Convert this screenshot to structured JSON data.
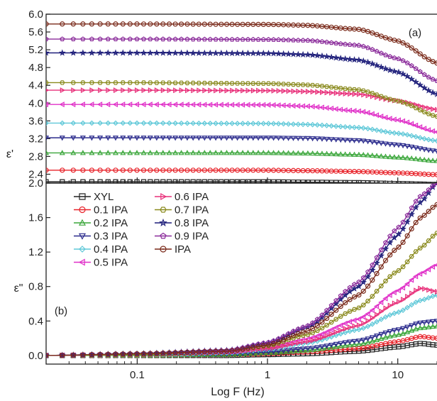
{
  "chart_data": [
    {
      "panel": "(a)",
      "type": "line",
      "ylabel": "ε'",
      "xlabel": "",
      "xscale": "log",
      "xlim": [
        0.02,
        20
      ],
      "ylim": [
        2.2,
        6.0
      ],
      "yticks": [
        "2.4",
        "2.8",
        "3.2",
        "3.6",
        "4.0",
        "4.4",
        "4.8",
        "5.2",
        "5.6",
        "6.0"
      ],
      "grid": false,
      "series": [
        {
          "name": "XYL",
          "color": "#222222",
          "marker": "square",
          "x": [
            0.02,
            0.1,
            1,
            2,
            5,
            10,
            20
          ],
          "values": [
            2.23,
            2.23,
            2.23,
            2.22,
            2.21,
            2.19,
            2.17
          ]
        },
        {
          "name": "0.1 IPA",
          "color": "#e8232a",
          "marker": "circle",
          "x": [
            0.02,
            0.1,
            1,
            2,
            5,
            10,
            20
          ],
          "values": [
            2.49,
            2.49,
            2.49,
            2.48,
            2.46,
            2.43,
            2.39
          ]
        },
        {
          "name": "0.2 IPA",
          "color": "#3aa63a",
          "marker": "triangle-up",
          "x": [
            0.02,
            0.1,
            1,
            2,
            5,
            10,
            20
          ],
          "values": [
            2.88,
            2.88,
            2.88,
            2.87,
            2.84,
            2.78,
            2.7
          ]
        },
        {
          "name": "0.3 IPA",
          "color": "#2a2a8c",
          "marker": "triangle-down",
          "x": [
            0.02,
            0.1,
            1,
            2,
            5,
            10,
            20
          ],
          "values": [
            3.22,
            3.22,
            3.22,
            3.21,
            3.16,
            3.06,
            2.92
          ]
        },
        {
          "name": "0.4 IPA",
          "color": "#5fc8d8",
          "marker": "diamond",
          "x": [
            0.02,
            0.1,
            1,
            2,
            5,
            10,
            20
          ],
          "values": [
            3.55,
            3.55,
            3.54,
            3.52,
            3.45,
            3.32,
            3.15
          ]
        },
        {
          "name": "0.5 IPA",
          "color": "#e030c8",
          "marker": "triangle-left",
          "x": [
            0.02,
            0.1,
            1,
            2,
            5,
            10,
            20
          ],
          "values": [
            3.97,
            3.97,
            3.96,
            3.93,
            3.82,
            3.62,
            3.35
          ]
        },
        {
          "name": "0.6 IPA",
          "color": "#e8307a",
          "marker": "triangle-right",
          "x": [
            0.02,
            0.1,
            1,
            2,
            5,
            10,
            20
          ],
          "values": [
            4.29,
            4.29,
            4.28,
            4.26,
            4.2,
            4.05,
            3.85
          ]
        },
        {
          "name": "0.7 IPA",
          "color": "#8a8a1e",
          "marker": "hexagon",
          "x": [
            0.02,
            0.1,
            1,
            2,
            5,
            10,
            20
          ],
          "values": [
            4.46,
            4.46,
            4.44,
            4.41,
            4.3,
            4.05,
            3.7
          ]
        },
        {
          "name": "0.8 IPA",
          "color": "#1e1e7a",
          "marker": "star",
          "x": [
            0.02,
            0.1,
            1,
            2,
            5,
            10,
            20
          ],
          "values": [
            5.13,
            5.13,
            5.12,
            5.09,
            4.97,
            4.7,
            4.2
          ]
        },
        {
          "name": "0.9 IPA",
          "color": "#8a2a9a",
          "marker": "pentagon",
          "x": [
            0.02,
            0.1,
            1,
            2,
            5,
            10,
            20
          ],
          "values": [
            5.44,
            5.44,
            5.43,
            5.41,
            5.3,
            5.0,
            4.5
          ]
        },
        {
          "name": "IPA",
          "color": "#7a2a1a",
          "marker": "circle-dot",
          "x": [
            0.02,
            0.1,
            1,
            2,
            5,
            10,
            20
          ],
          "values": [
            5.78,
            5.78,
            5.77,
            5.75,
            5.66,
            5.4,
            4.9
          ]
        }
      ]
    },
    {
      "panel": "(b)",
      "type": "line",
      "ylabel": "ε\"",
      "xlabel": "Log F (Hz)",
      "xscale": "log",
      "xlim": [
        0.02,
        20
      ],
      "ylim": [
        -0.1,
        2.0
      ],
      "xticks": [
        "0.1",
        "1",
        "10"
      ],
      "yticks": [
        "0.0",
        "0.4",
        "0.8",
        "1.2",
        "1.6",
        "2.0"
      ],
      "grid": false,
      "legend_position": "top-left",
      "series": [
        {
          "name": "XYL",
          "color": "#222222",
          "marker": "square",
          "x": [
            0.02,
            0.1,
            0.5,
            1,
            2,
            5,
            10,
            15,
            20
          ],
          "values": [
            0.0,
            0.0,
            0.0,
            0.01,
            0.02,
            0.05,
            0.1,
            0.14,
            0.12
          ]
        },
        {
          "name": "0.1 IPA",
          "color": "#e8232a",
          "marker": "circle",
          "x": [
            0.02,
            0.1,
            0.5,
            1,
            2,
            5,
            10,
            15,
            20
          ],
          "values": [
            0.0,
            0.0,
            0.01,
            0.02,
            0.04,
            0.08,
            0.16,
            0.22,
            0.2
          ]
        },
        {
          "name": "0.2 IPA",
          "color": "#3aa63a",
          "marker": "triangle-up",
          "x": [
            0.02,
            0.1,
            0.5,
            1,
            2,
            5,
            10,
            15,
            20
          ],
          "values": [
            0.0,
            0.0,
            0.01,
            0.03,
            0.06,
            0.13,
            0.24,
            0.32,
            0.34
          ]
        },
        {
          "name": "0.3 IPA",
          "color": "#2a2a8c",
          "marker": "triangle-down",
          "x": [
            0.02,
            0.1,
            0.5,
            1,
            2,
            5,
            10,
            15,
            20
          ],
          "values": [
            0.0,
            0.01,
            0.02,
            0.04,
            0.08,
            0.17,
            0.3,
            0.38,
            0.4
          ]
        },
        {
          "name": "0.4 IPA",
          "color": "#5fc8d8",
          "marker": "diamond",
          "x": [
            0.02,
            0.1,
            0.5,
            1,
            2,
            5,
            10,
            15,
            20
          ],
          "values": [
            0.0,
            0.01,
            0.03,
            0.07,
            0.14,
            0.3,
            0.5,
            0.64,
            0.7
          ]
        },
        {
          "name": "0.5 IPA",
          "color": "#e030c8",
          "marker": "triangle-left",
          "x": [
            0.02,
            0.1,
            0.5,
            1,
            2,
            5,
            10,
            15,
            20
          ],
          "values": [
            0.0,
            0.01,
            0.04,
            0.09,
            0.19,
            0.42,
            0.75,
            0.95,
            1.05
          ]
        },
        {
          "name": "0.6 IPA",
          "color": "#e8307a",
          "marker": "triangle-right",
          "x": [
            0.02,
            0.1,
            0.5,
            1,
            2,
            5,
            10,
            15,
            20
          ],
          "values": [
            0.0,
            0.01,
            0.04,
            0.08,
            0.16,
            0.35,
            0.62,
            0.78,
            0.74
          ]
        },
        {
          "name": "0.7 IPA",
          "color": "#8a8a1e",
          "marker": "hexagon",
          "x": [
            0.02,
            0.1,
            0.5,
            1,
            2,
            5,
            10,
            15,
            20
          ],
          "values": [
            0.0,
            0.01,
            0.05,
            0.11,
            0.24,
            0.55,
            0.98,
            1.25,
            1.42
          ]
        },
        {
          "name": "0.8 IPA",
          "color": "#1e1e7a",
          "marker": "star",
          "x": [
            0.02,
            0.1,
            0.5,
            1,
            2,
            5,
            10,
            15,
            20
          ],
          "values": [
            0.0,
            0.02,
            0.06,
            0.14,
            0.32,
            0.8,
            1.4,
            1.78,
            2.0
          ]
        },
        {
          "name": "0.9 IPA",
          "color": "#8a2a9a",
          "marker": "pentagon",
          "x": [
            0.02,
            0.1,
            0.5,
            1,
            2,
            5,
            10,
            15,
            20
          ],
          "values": [
            0.0,
            0.02,
            0.06,
            0.15,
            0.34,
            0.85,
            1.48,
            1.85,
            2.0
          ]
        },
        {
          "name": "IPA",
          "color": "#7a2a1a",
          "marker": "circle-dot",
          "x": [
            0.02,
            0.1,
            0.5,
            1,
            2,
            5,
            10,
            15,
            20
          ],
          "values": [
            0.0,
            0.02,
            0.05,
            0.12,
            0.28,
            0.7,
            1.25,
            1.6,
            1.75
          ]
        }
      ]
    }
  ]
}
